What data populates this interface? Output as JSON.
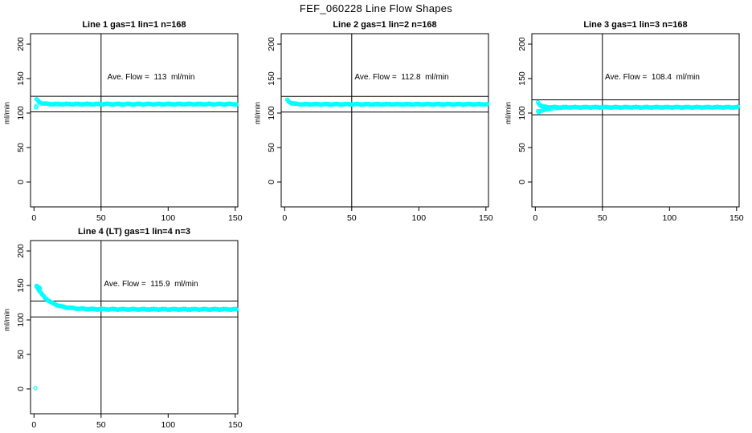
{
  "page_title": "FEF_060228  Line Flow Shapes",
  "colors": {
    "points": "#00ffff",
    "axis": "#000000",
    "background": "#ffffff",
    "text": "#000000"
  },
  "chart_data": [
    {
      "type": "scatter",
      "title": "Line 1 gas=1 lin=1 n=168",
      "annotation": "Ave. Flow =  113  ml/min",
      "ave_flow_ml_min": 113,
      "ylabel": "ml/min",
      "xlim": [
        0,
        155
      ],
      "ylim": [
        0,
        210
      ],
      "xticks": [
        0,
        50,
        100,
        150
      ],
      "yticks": [
        0,
        50,
        100,
        150,
        200
      ],
      "vline_x": 50,
      "hlines": [
        124.3,
        101.7
      ],
      "curve": {
        "x_start": 2,
        "x_end": 151,
        "step": 0.5,
        "start_value": 120,
        "asymptote": 113,
        "tau": 2.5
      },
      "extra_points": [
        [
          1.5,
          108.5
        ],
        [
          2,
          110.5
        ]
      ]
    },
    {
      "type": "scatter",
      "title": "Line 2 gas=1 lin=2 n=168",
      "annotation": "Ave. Flow =  112.8  ml/min",
      "ave_flow_ml_min": 112.8,
      "ylabel": "ml/min",
      "xlim": [
        0,
        155
      ],
      "ylim": [
        0,
        210
      ],
      "xticks": [
        0,
        50,
        100,
        150
      ],
      "yticks": [
        0,
        50,
        100,
        150,
        200
      ],
      "vline_x": 50,
      "hlines": [
        124.1,
        101.5
      ],
      "curve": {
        "x_start": 2,
        "x_end": 151,
        "step": 0.5,
        "start_value": 119,
        "asymptote": 112.8,
        "tau": 2.5
      },
      "extra_points": []
    },
    {
      "type": "scatter",
      "title": "Line 3 gas=1 lin=3 n=168",
      "annotation": "Ave. Flow =  108.4  ml/min",
      "ave_flow_ml_min": 108.4,
      "ylabel": "ml/min",
      "xlim": [
        0,
        155
      ],
      "ylim": [
        0,
        210
      ],
      "xticks": [
        0,
        50,
        100,
        150
      ],
      "yticks": [
        0,
        50,
        100,
        150,
        200
      ],
      "vline_x": 50,
      "hlines": [
        119.2,
        97.6
      ],
      "curve": {
        "x_start": 2,
        "x_end": 151,
        "step": 0.5,
        "start_value": 116,
        "asymptote": 108.4,
        "tau": 2
      },
      "extra_points": [
        [
          2,
          103
        ],
        [
          2.5,
          101
        ],
        [
          3,
          102.5
        ],
        [
          4,
          103
        ],
        [
          5,
          103.5
        ],
        [
          6,
          104
        ],
        [
          7,
          104.5
        ],
        [
          8,
          105
        ],
        [
          9,
          105.3
        ],
        [
          10,
          105.6
        ],
        [
          12,
          106.2
        ],
        [
          14,
          106.7
        ],
        [
          16,
          107.1
        ],
        [
          18,
          107.4
        ],
        [
          20,
          107.7
        ],
        [
          22,
          107.9
        ],
        [
          24,
          108.1
        ]
      ]
    },
    {
      "type": "scatter",
      "title": "Line 4 (LT) gas=1 lin=4 n=3",
      "annotation": "Ave. Flow =  115.9  ml/min",
      "ave_flow_ml_min": 115.9,
      "ylabel": "ml/min",
      "xlim": [
        0,
        155
      ],
      "ylim": [
        0,
        210
      ],
      "xticks": [
        0,
        50,
        100,
        150
      ],
      "yticks": [
        0,
        50,
        100,
        150,
        200
      ],
      "vline_x": 50,
      "hlines": [
        127.5,
        104.3
      ],
      "curve": {
        "x_start": 2,
        "x_end": 151,
        "step": 0.5,
        "start_value": 149,
        "asymptote": 115.4,
        "tau": 9
      },
      "extra_points": [
        [
          1,
          1
        ],
        [
          2,
          149.5
        ],
        [
          2.5,
          148.5
        ],
        [
          3,
          148
        ],
        [
          3.5,
          147.5
        ],
        [
          4,
          147
        ],
        [
          4.5,
          146
        ]
      ]
    }
  ]
}
